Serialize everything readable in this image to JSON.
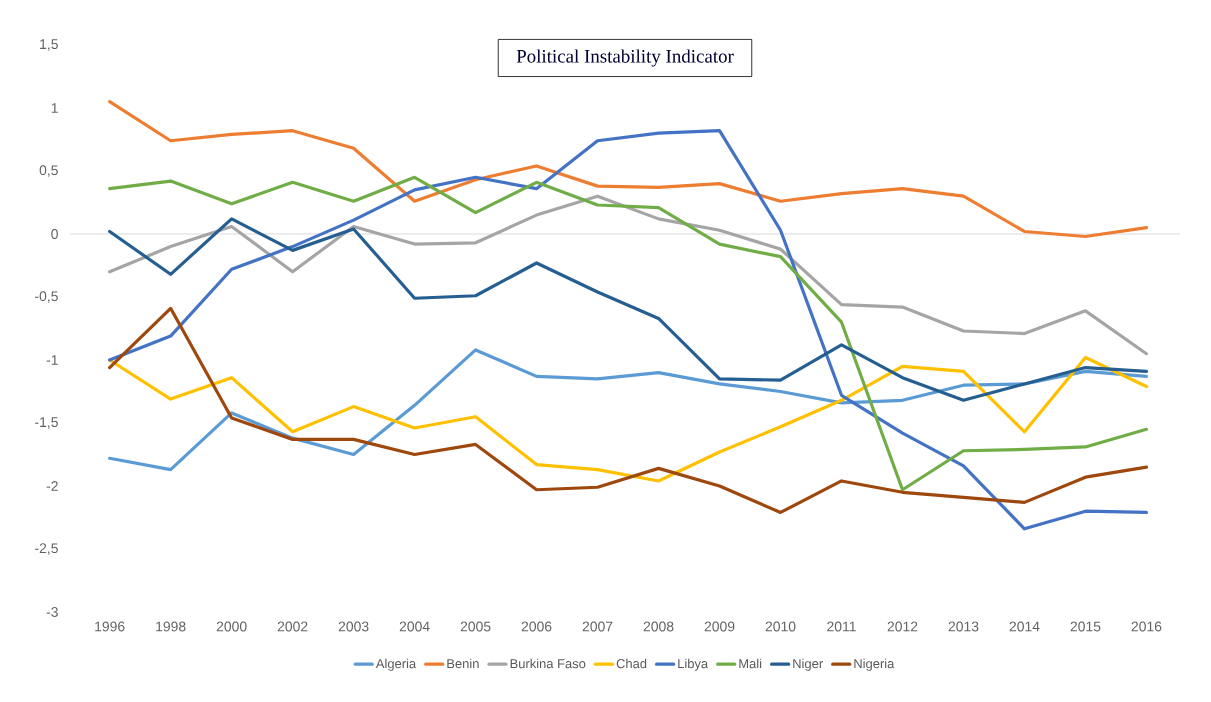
{
  "chart_data": {
    "type": "line",
    "title": "Political Instability Indicator",
    "categories": [
      "1996",
      "1998",
      "2000",
      "2002",
      "2003",
      "2004",
      "2005",
      "2006",
      "2007",
      "2008",
      "2009",
      "2010",
      "2011",
      "2012",
      "2013",
      "2014",
      "2015",
      "2016"
    ],
    "series": [
      {
        "name": "Algeria",
        "color": "#5b9bd5",
        "values": [
          -1.78,
          -1.87,
          -1.42,
          -1.62,
          -1.75,
          -1.36,
          -0.92,
          -1.13,
          -1.15,
          -1.1,
          -1.19,
          -1.25,
          -1.34,
          -1.32,
          -1.2,
          -1.19,
          -1.09,
          -1.13
        ]
      },
      {
        "name": "Benin",
        "color": "#ed7d31",
        "values": [
          1.05,
          0.74,
          0.79,
          0.82,
          0.68,
          0.26,
          0.43,
          0.54,
          0.38,
          0.37,
          0.4,
          0.26,
          0.32,
          0.36,
          0.3,
          0.02,
          -0.02,
          0.05
        ]
      },
      {
        "name": "Burkina Faso",
        "color": "#a5a5a5",
        "values": [
          -0.3,
          -0.1,
          0.06,
          -0.3,
          0.06,
          -0.08,
          -0.07,
          0.15,
          0.3,
          0.12,
          0.03,
          -0.12,
          -0.56,
          -0.58,
          -0.77,
          -0.79,
          -0.61,
          -0.95
        ]
      },
      {
        "name": "Chad",
        "color": "#ffc000",
        "values": [
          -1.0,
          -1.31,
          -1.14,
          -1.57,
          -1.37,
          -1.54,
          -1.45,
          -1.83,
          -1.87,
          -1.96,
          -1.73,
          -1.53,
          -1.32,
          -1.05,
          -1.09,
          -1.57,
          -0.98,
          -1.21
        ]
      },
      {
        "name": "Libya",
        "color": "#4472c4",
        "values": [
          -1.0,
          -0.81,
          -0.28,
          -0.1,
          0.11,
          0.35,
          0.45,
          0.36,
          0.74,
          0.8,
          0.82,
          0.03,
          -1.28,
          -1.58,
          -1.84,
          -2.34,
          -2.2,
          -2.21
        ]
      },
      {
        "name": "Mali",
        "color": "#70ad47",
        "values": [
          0.36,
          0.42,
          0.24,
          0.41,
          0.26,
          0.45,
          0.17,
          0.41,
          0.23,
          0.21,
          -0.08,
          -0.18,
          -0.7,
          -2.03,
          -1.72,
          -1.71,
          -1.69,
          -1.55
        ]
      },
      {
        "name": "Niger",
        "color": "#255e91",
        "values": [
          0.02,
          -0.32,
          0.12,
          -0.13,
          0.04,
          -0.51,
          -0.49,
          -0.23,
          -0.46,
          -0.67,
          -1.15,
          -1.16,
          -0.88,
          -1.14,
          -1.32,
          -1.19,
          -1.06,
          -1.09
        ]
      },
      {
        "name": "Nigeria",
        "color": "#9e480e",
        "values": [
          -1.06,
          -0.59,
          -1.46,
          -1.63,
          -1.63,
          -1.75,
          -1.67,
          -2.03,
          -2.01,
          -1.86,
          -2.0,
          -2.21,
          -1.96,
          -2.05,
          -2.09,
          -2.13,
          -1.93,
          -1.85
        ]
      }
    ],
    "ylim": [
      -3,
      1.5
    ],
    "yticks": [
      {
        "value": 1.5,
        "label": "1,5"
      },
      1,
      {
        "value": 0.5,
        "label": "0,5"
      },
      0,
      {
        "value": -0.5,
        "label": "-0,5"
      },
      -1,
      {
        "value": -1.5,
        "label": "-1,5"
      },
      -2,
      {
        "value": -2.5,
        "label": "-2,5"
      },
      -3
    ],
    "ref_lines": [
      {
        "axis": "y",
        "value": 0,
        "color": "#d9d9d9"
      }
    ],
    "legend": "bottom",
    "grid": false,
    "marker": "none",
    "line_style": "solid"
  }
}
